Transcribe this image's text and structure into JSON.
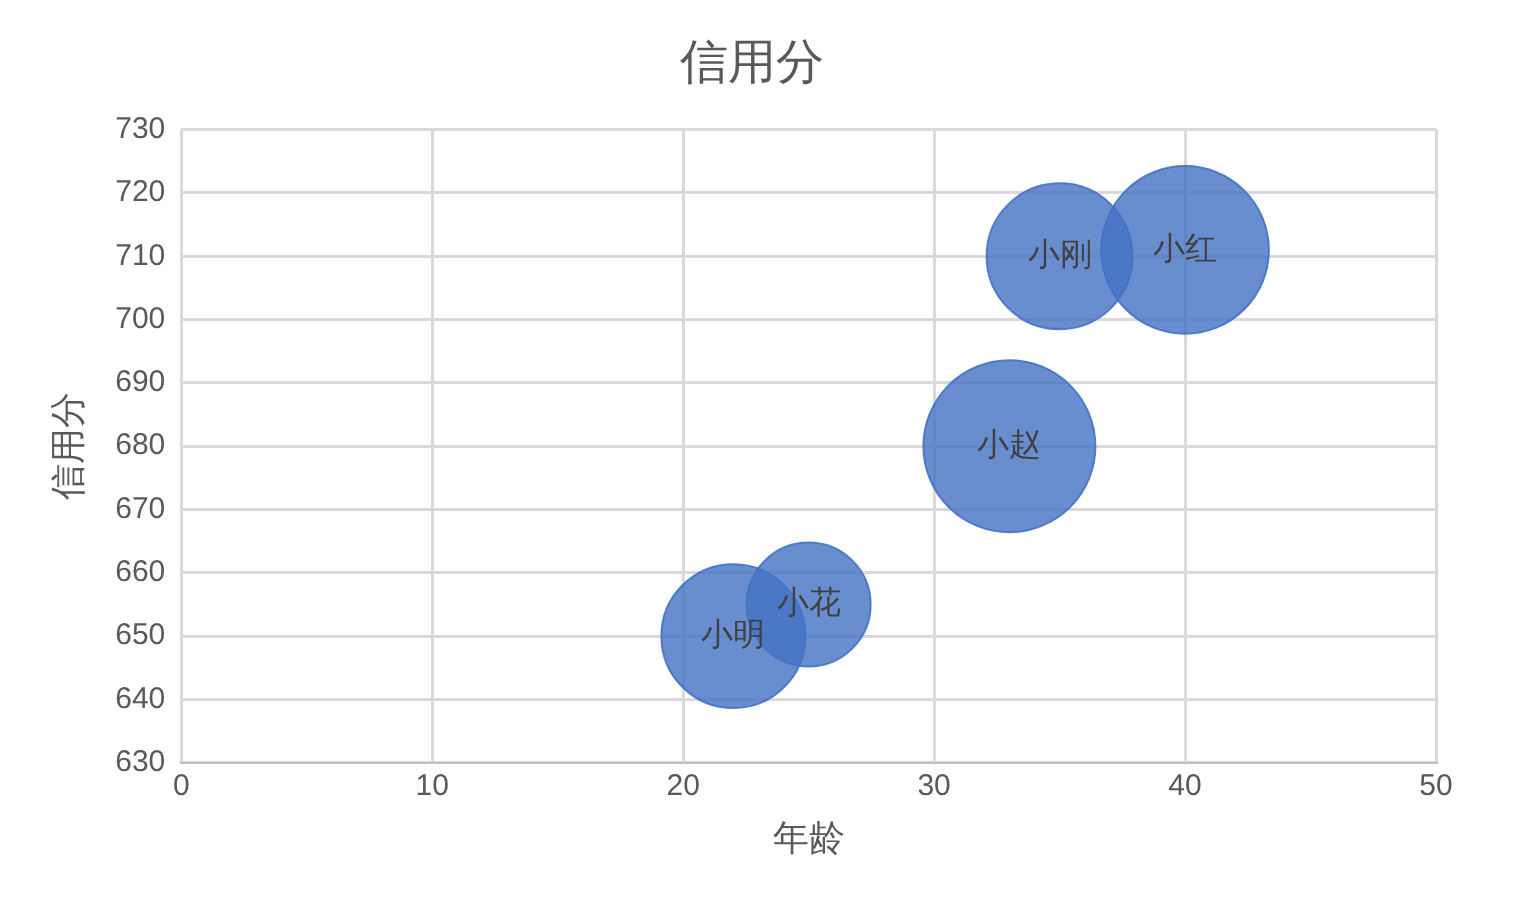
{
  "chart_data": {
    "type": "bubble",
    "title": "信用分",
    "xlabel": "年龄",
    "ylabel": "信用分",
    "x": [
      22,
      25,
      33,
      35,
      40
    ],
    "values": [
      650,
      655,
      680,
      710,
      711
    ],
    "sizes": [
      0.7,
      0.52,
      1,
      0.72,
      0.95
    ],
    "color": "#4472c4",
    "annotations": [
      {
        "text": "小明",
        "x": 22,
        "y": 650
      },
      {
        "text": "小花",
        "x": 25,
        "y": 655
      },
      {
        "text": "小赵",
        "x": 33,
        "y": 680
      },
      {
        "text": "小刚",
        "x": 35,
        "y": 710
      },
      {
        "text": "小红",
        "x": 40,
        "y": 711
      }
    ],
    "xlim": [
      0,
      50
    ],
    "xticks": [
      0,
      10,
      20,
      30,
      40,
      50
    ],
    "ylim": [
      630,
      730
    ],
    "yticks": [
      630,
      640,
      650,
      660,
      670,
      680,
      690,
      700,
      710,
      720,
      730
    ],
    "grid": true,
    "legend": false
  }
}
